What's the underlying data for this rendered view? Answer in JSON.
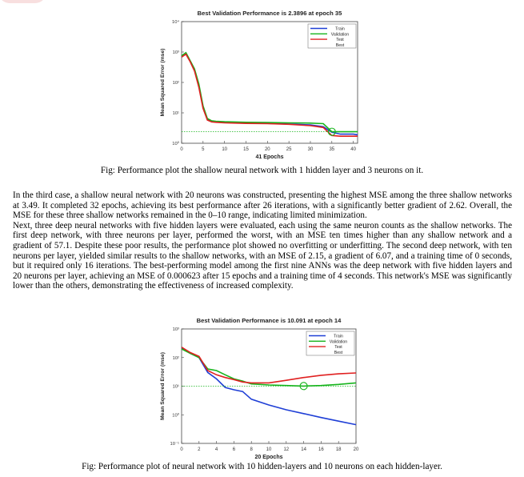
{
  "figure1": {
    "caption": "Fig: Performance plot the shallow neural network with 1 hidden layer and 3 neurons on it.",
    "chart_data": {
      "type": "line",
      "title": "Best Validation Performance is 2.3896 at epoch 35",
      "xlabel": "41 Epochs",
      "ylabel": "Mean Squared Error  (mse)",
      "yscale": "log",
      "xlim": [
        0,
        41
      ],
      "ylim": [
        1,
        10000
      ],
      "xticks": [
        0,
        5,
        10,
        15,
        20,
        25,
        30,
        35,
        40
      ],
      "yticks": [
        {
          "v": 1,
          "label": "10⁰"
        },
        {
          "v": 10,
          "label": "10¹"
        },
        {
          "v": 100,
          "label": "10²"
        },
        {
          "v": 1000,
          "label": "10³"
        },
        {
          "v": 10000,
          "label": "10⁴"
        }
      ],
      "best_epoch": 35,
      "best_value": 2.3896,
      "legend_position": "top-right",
      "series": [
        {
          "name": "Train",
          "color": "#1f3fd6",
          "x": [
            0,
            1,
            2,
            3,
            4,
            5,
            6,
            7,
            8,
            10,
            15,
            20,
            25,
            30,
            33,
            35,
            37,
            40,
            41
          ],
          "y": [
            700,
            900,
            500,
            250,
            80,
            15,
            6,
            5.2,
            5,
            4.8,
            4.6,
            4.5,
            4.3,
            4,
            3.5,
            2.3,
            2.0,
            2.0,
            1.9
          ]
        },
        {
          "name": "Validation",
          "color": "#16b41c",
          "x": [
            0,
            1,
            2,
            3,
            4,
            5,
            6,
            7,
            8,
            10,
            15,
            20,
            25,
            30,
            33,
            35,
            37,
            40,
            41
          ],
          "y": [
            750,
            950,
            520,
            280,
            90,
            17,
            6.5,
            5.5,
            5.3,
            5.1,
            4.9,
            4.8,
            4.7,
            4.6,
            4.4,
            2.39,
            2.4,
            2.4,
            2.4
          ]
        },
        {
          "name": "Test",
          "color": "#e02020",
          "x": [
            0,
            1,
            2,
            3,
            4,
            5,
            6,
            7,
            8,
            10,
            15,
            20,
            25,
            30,
            33,
            35,
            37,
            40,
            41
          ],
          "y": [
            680,
            850,
            480,
            240,
            70,
            14,
            5.8,
            5,
            4.9,
            4.7,
            4.5,
            4.4,
            4.2,
            3.8,
            3.3,
            1.8,
            1.7,
            1.7,
            1.7
          ]
        },
        {
          "name": "Best",
          "color": "#16b41c",
          "dotted": true,
          "x": [
            0,
            41
          ],
          "y": [
            2.3896,
            2.3896
          ]
        }
      ]
    }
  },
  "paragraphs": [
    "In the third case, a shallow neural network with 20 neurons was constructed, presenting the highest MSE among the three shallow networks at 3.49. It completed 32 epochs, achieving its best performance after 26 iterations, with a significantly better gradient of 2.62. Overall, the MSE for these three shallow networks remained in the 0–10 range, indicating limited minimization.",
    "Next, three deep neural networks with five hidden layers were evaluated, each using the same neuron counts as the shallow networks. The first deep network, with three neurons per layer, performed the worst, with an MSE ten times higher than any shallow network and a gradient of 57.1. Despite these poor results, the performance plot showed no overfitting or underfitting. The second deep network, with ten neurons per layer, yielded similar results to the shallow networks, with an MSE of 2.15, a gradient of 6.07, and a training time of 0 seconds, but it required only 16 iterations. The best-performing model among the first nine ANNs was the deep network with five hidden layers and 20 neurons per layer, achieving an MSE of 0.000623 after 15 epochs and a training time of 4 seconds. This network's MSE was significantly lower than the others, demonstrating the effectiveness of increased complexity."
  ],
  "figure2": {
    "caption": "Fig: Performance plot of neural network with 10 hidden-layers and 10 neurons on each hidden-layer.",
    "chart_data": {
      "type": "line",
      "title": "Best Validation Performance is 10.091 at epoch 14",
      "xlabel": "20 Epochs",
      "ylabel": "Mean Squared Error  (mse)",
      "yscale": "log",
      "xlim": [
        0,
        20
      ],
      "ylim": [
        0.1,
        1000
      ],
      "xticks": [
        0,
        2,
        4,
        6,
        8,
        10,
        12,
        14,
        16,
        18,
        20
      ],
      "yticks": [
        {
          "v": 0.1,
          "label": "10⁻¹"
        },
        {
          "v": 1,
          "label": "10⁰"
        },
        {
          "v": 10,
          "label": "10¹"
        },
        {
          "v": 100,
          "label": "10²"
        },
        {
          "v": 1000,
          "label": "10³"
        }
      ],
      "best_epoch": 14,
      "best_value": 10.091,
      "legend_position": "top-right",
      "series": [
        {
          "name": "Train",
          "color": "#1f3fd6",
          "x": [
            0,
            1,
            2,
            3,
            4,
            5,
            6,
            7,
            8,
            10,
            12,
            14,
            16,
            18,
            20
          ],
          "y": [
            220,
            140,
            100,
            30,
            18,
            9,
            7.5,
            6.5,
            3.5,
            2.2,
            1.5,
            1.1,
            0.8,
            0.6,
            0.45
          ]
        },
        {
          "name": "Validation",
          "color": "#16b41c",
          "x": [
            0,
            1,
            2,
            3,
            4,
            5,
            6,
            7,
            8,
            10,
            12,
            14,
            16,
            18,
            20
          ],
          "y": [
            200,
            140,
            100,
            40,
            35,
            25,
            18,
            15,
            12,
            11,
            10.5,
            10.091,
            10.5,
            11.5,
            13
          ]
        },
        {
          "name": "Test",
          "color": "#e02020",
          "x": [
            0,
            1,
            2,
            3,
            4,
            5,
            6,
            7,
            8,
            10,
            12,
            14,
            16,
            18,
            20
          ],
          "y": [
            230,
            150,
            110,
            35,
            25,
            20,
            17,
            14,
            13,
            13,
            16,
            20,
            24,
            27,
            29
          ]
        },
        {
          "name": "Best",
          "color": "#16b41c",
          "dotted": true,
          "x": [
            0,
            20
          ],
          "y": [
            10.091,
            10.091
          ]
        }
      ]
    }
  }
}
